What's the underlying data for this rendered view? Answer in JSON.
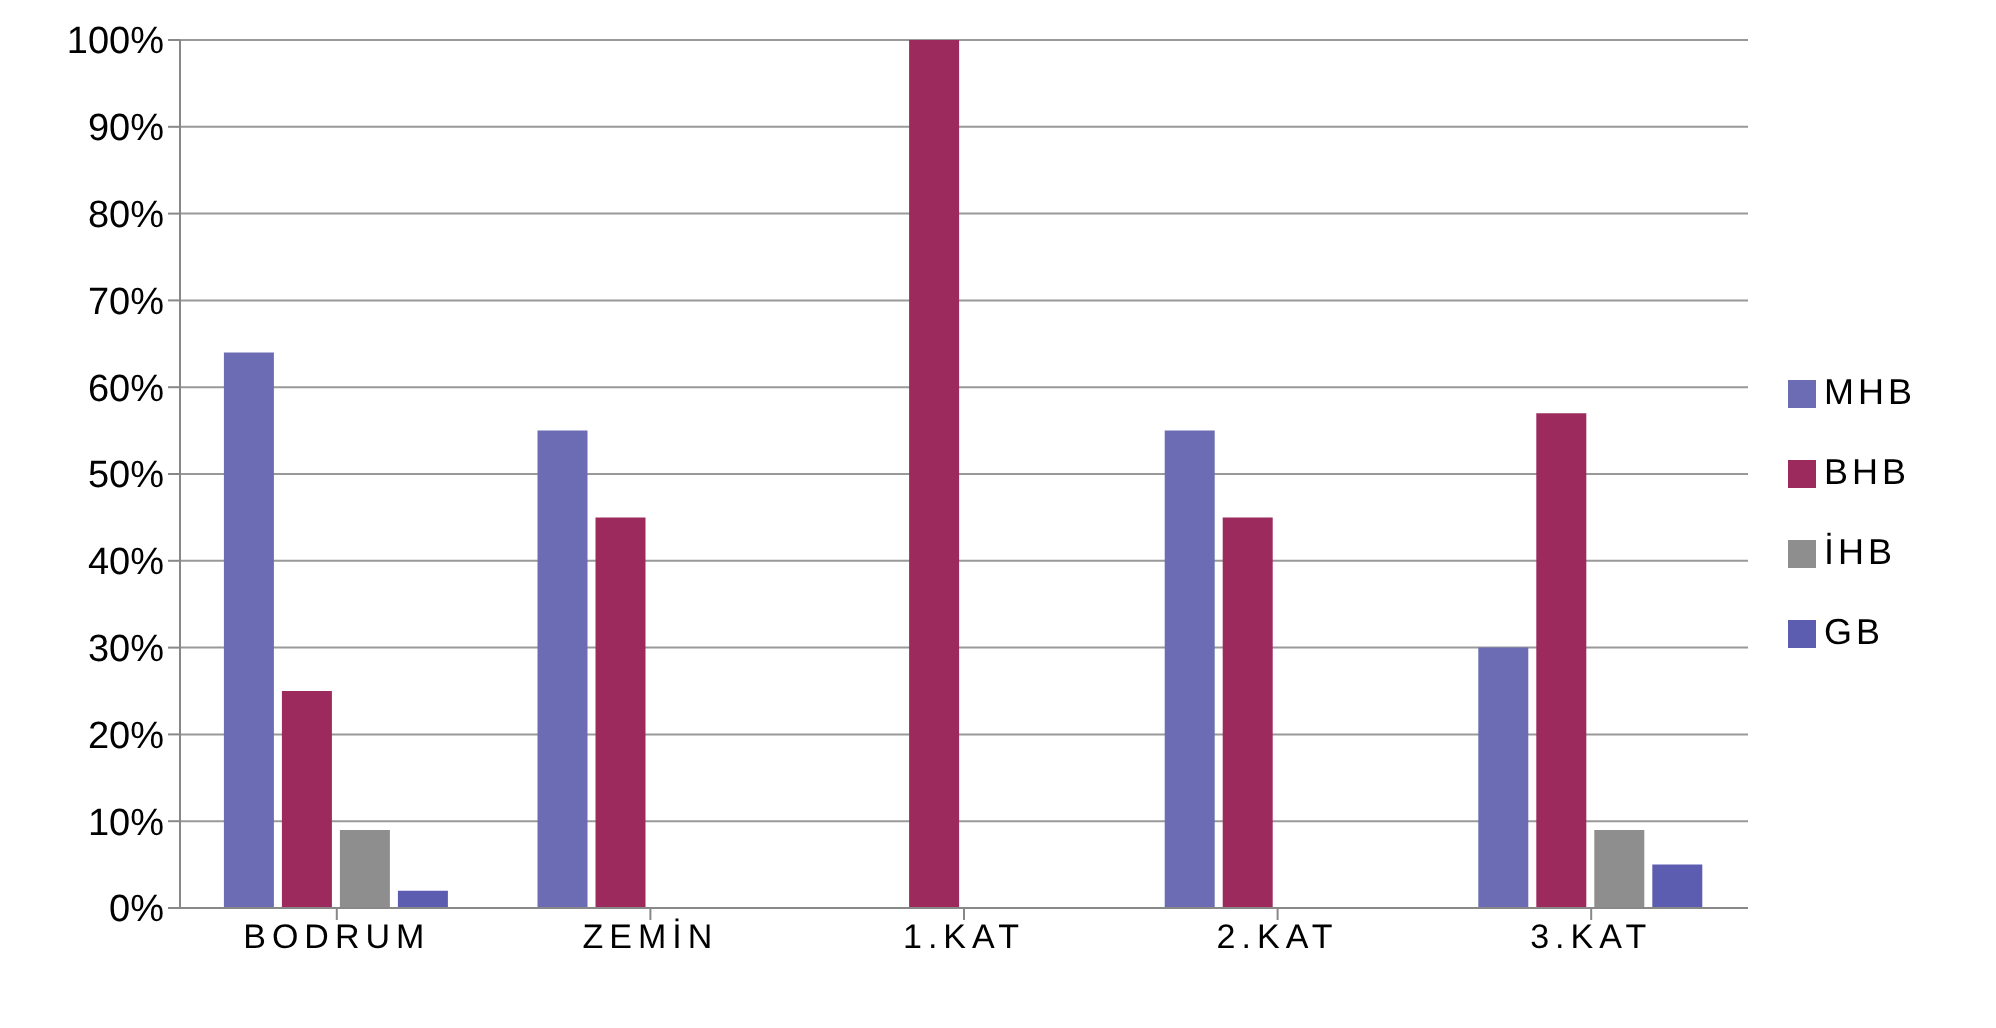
{
  "chart_data": {
    "type": "bar",
    "categories": [
      "BODRUM",
      "ZEMİN",
      "1.KAT",
      "2.KAT",
      "3.KAT"
    ],
    "series": [
      {
        "name": "MHB",
        "color": "#6c6cb4",
        "values": [
          64,
          55,
          0,
          55,
          30
        ]
      },
      {
        "name": "BHB",
        "color": "#9c2a5c",
        "values": [
          25,
          45,
          100,
          45,
          57
        ]
      },
      {
        "name": "İHB",
        "color": "#8e8e8e",
        "values": [
          9,
          0,
          0,
          0,
          9
        ]
      },
      {
        "name": "GB",
        "color": "#5c5cb0",
        "values": [
          2,
          0,
          0,
          0,
          5
        ]
      }
    ],
    "ylim": [
      0,
      100
    ],
    "yticks": [
      {
        "value": 0,
        "label": "0%"
      },
      {
        "value": 10,
        "label": "10%"
      },
      {
        "value": 20,
        "label": "20%"
      },
      {
        "value": 30,
        "label": "30%"
      },
      {
        "value": 40,
        "label": "40%"
      },
      {
        "value": 50,
        "label": "50%"
      },
      {
        "value": 60,
        "label": "60%"
      },
      {
        "value": 70,
        "label": "70%"
      },
      {
        "value": 80,
        "label": "80%"
      },
      {
        "value": 90,
        "label": "90%"
      },
      {
        "value": 100,
        "label": "100%"
      }
    ],
    "grid": "y",
    "legend": "right"
  }
}
